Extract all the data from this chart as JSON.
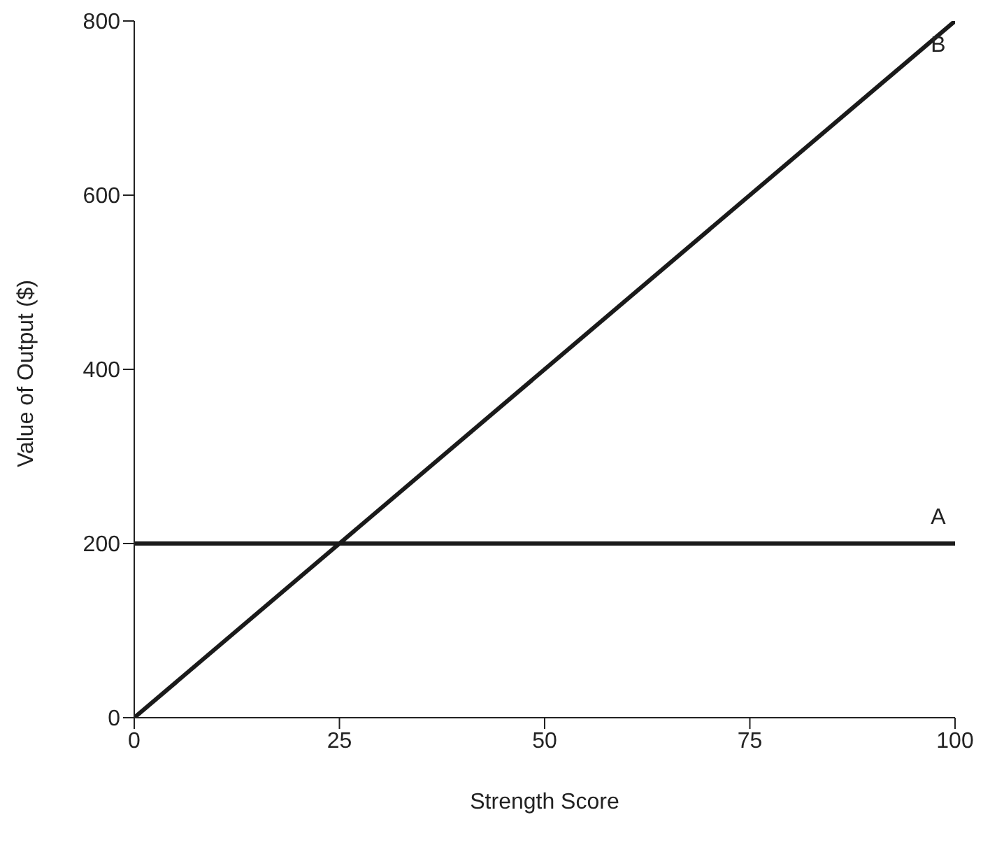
{
  "chart_data": {
    "type": "line",
    "xlabel": "Strength Score",
    "ylabel": "Value of Output ($)",
    "x": [
      0,
      100
    ],
    "series": [
      {
        "name": "A",
        "color": "#1a1a1a",
        "values": [
          200,
          200
        ]
      },
      {
        "name": "B",
        "color": "#1a1a1a",
        "values": [
          0,
          800
        ]
      }
    ],
    "xlim": [
      0,
      100
    ],
    "xticks": [
      0,
      25,
      50,
      75,
      100
    ],
    "ylim": [
      0,
      800
    ],
    "yticks": [
      0,
      200,
      400,
      600,
      800
    ],
    "grid": false,
    "legend": false,
    "marker": "none",
    "line_style": "solid"
  }
}
